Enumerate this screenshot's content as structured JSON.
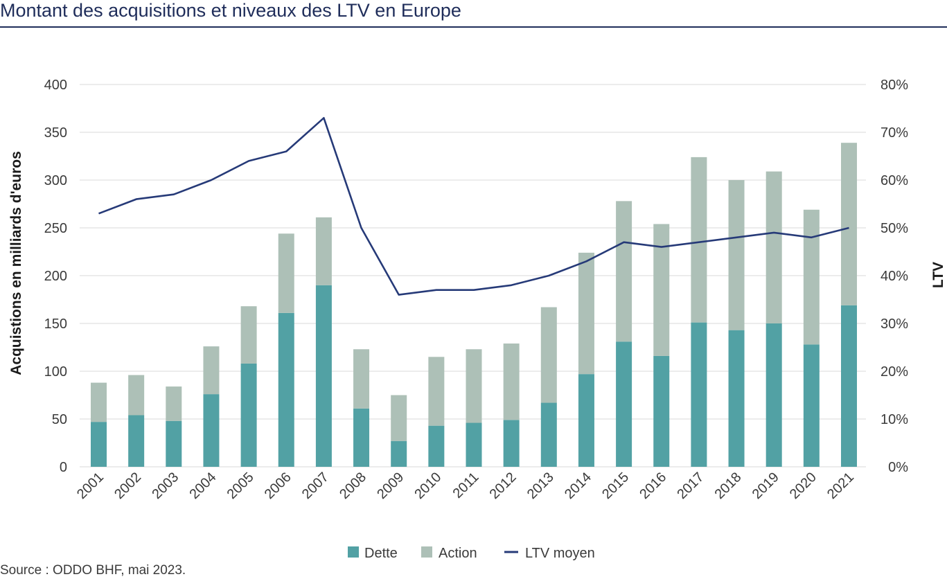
{
  "title": "Montant des acquisitions et niveaux des LTV  en Europe",
  "source": "Source : ODDO BHF, mai 2023.",
  "colors": {
    "dette": "#52a1a4",
    "action": "#adc0b7",
    "ltv": "#263a78",
    "grid": "#d9d9d9",
    "title": "#1f2d5a"
  },
  "chart_data": {
    "type": "bar",
    "stacked": true,
    "categories": [
      "2001",
      "2002",
      "2003",
      "2004",
      "2005",
      "2006",
      "2007",
      "2008",
      "2009",
      "2010",
      "2011",
      "2012",
      "2013",
      "2014",
      "2015",
      "2016",
      "2017",
      "2018",
      "2019",
      "2020",
      "2021"
    ],
    "series": [
      {
        "name": "Dette",
        "values": [
          47,
          54,
          48,
          76,
          108,
          161,
          190,
          61,
          27,
          43,
          46,
          49,
          67,
          97,
          131,
          116,
          151,
          143,
          150,
          128,
          169
        ]
      },
      {
        "name": "Action",
        "values": [
          41,
          42,
          36,
          50,
          60,
          83,
          71,
          62,
          48,
          72,
          77,
          80,
          100,
          127,
          147,
          138,
          173,
          157,
          159,
          141,
          170
        ]
      }
    ],
    "line_series": {
      "name": "LTV moyen",
      "axis": "right",
      "values": [
        53,
        56,
        57,
        60,
        64,
        66,
        73,
        50,
        36,
        37,
        37,
        38,
        40,
        43,
        47,
        46,
        47,
        48,
        49,
        48,
        50
      ]
    },
    "ylabel": "Acquistions en milliards d'euros",
    "ylabel_right": "LTV",
    "ylim": [
      0,
      400
    ],
    "yticks": [
      0,
      50,
      100,
      150,
      200,
      250,
      300,
      350,
      400
    ],
    "ylim_right": [
      0,
      80
    ],
    "yticks_right": [
      "0%",
      "10%",
      "20%",
      "30%",
      "40%",
      "50%",
      "60%",
      "70%",
      "80%"
    ],
    "grid": true,
    "legend": [
      "Dette",
      "Action",
      "LTV moyen"
    ],
    "legend_position": "bottom-center"
  }
}
